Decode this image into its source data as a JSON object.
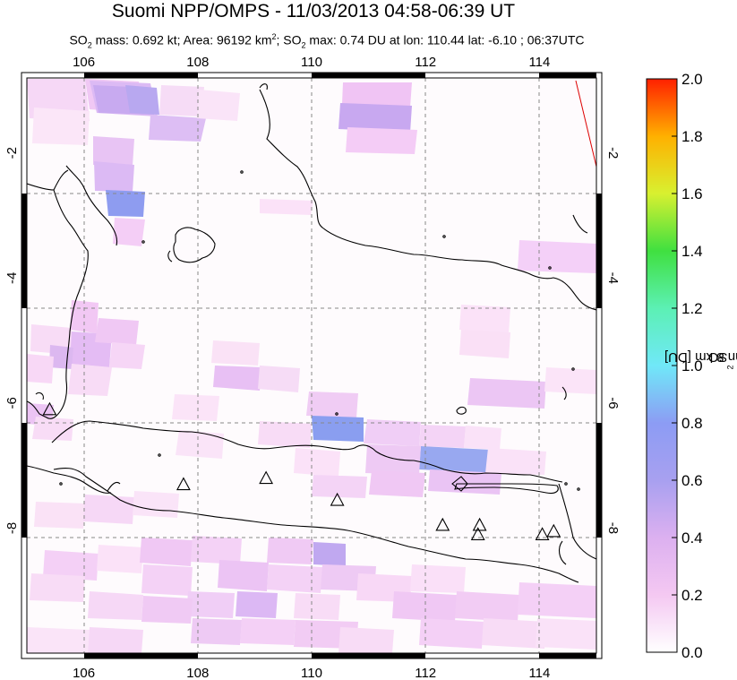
{
  "header": {
    "title": "Suomi NPP/OMPS - 11/03/2013 04:58-06:39 UT",
    "subtitle": {
      "so2_label": "SO",
      "so2_sub": "2",
      "mass_text": " mass: 0.692 kt; Area: 96192 km",
      "area_sup": "2",
      "sep": "; SO",
      "so2_sub_2": "2",
      "max_text": " max: 0.74 DU at lon: 110.44 lat: -6.10 ; 06:37UTC"
    }
  },
  "map": {
    "lon_ticks": [
      "106",
      "108",
      "110",
      "112",
      "114"
    ],
    "lat_ticks": [
      "-2",
      "-4",
      "-6",
      "-8"
    ],
    "lon_values": [
      106,
      108,
      110,
      112,
      114
    ],
    "lat_values": [
      -2,
      -4,
      -6,
      -8
    ],
    "lon_range": [
      105,
      115
    ],
    "lat_range": [
      -10,
      -0.8
    ],
    "volcano_marker": "triangle-icon",
    "volcanoes": [
      {
        "lon": 105.4,
        "lat": -6.1
      },
      {
        "lon": 107.75,
        "lat": -7.3
      },
      {
        "lon": 109.2,
        "lat": -7.2
      },
      {
        "lon": 110.45,
        "lat": -7.55
      },
      {
        "lon": 112.3,
        "lat": -7.95
      },
      {
        "lon": 112.95,
        "lat": -7.95
      },
      {
        "lon": 112.92,
        "lat": -8.1
      },
      {
        "lon": 114.05,
        "lat": -8.1
      },
      {
        "lon": 114.25,
        "lat": -8.05
      }
    ]
  },
  "colorbar": {
    "ticks": [
      "2.0",
      "1.8",
      "1.6",
      "1.4",
      "1.2",
      "1.0",
      "0.8",
      "0.6",
      "0.4",
      "0.2",
      "0.0"
    ],
    "label_prefix": "SO",
    "label_sub": "2",
    "label_suffix": " column 8 km [DU]",
    "range": [
      0,
      2.0
    ],
    "colors": [
      "#ffffff",
      "#f4c8f2",
      "#c8a8f0",
      "#8c9cf4",
      "#70e8f8",
      "#5cf0b4",
      "#40e040",
      "#d8f030",
      "#ffd000",
      "#ff8800",
      "#ff2000"
    ]
  }
}
